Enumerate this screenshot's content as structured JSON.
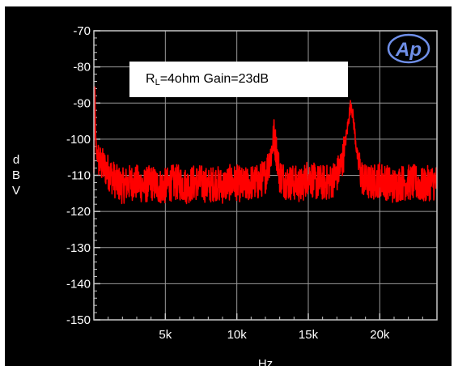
{
  "chart_data": {
    "type": "line",
    "title": "",
    "annotation": {
      "prefix": "R",
      "subscript": "L",
      "text": "=4ohm Gain=23dB"
    },
    "xlabel": "Hz",
    "ylabel": [
      "d",
      "B",
      "V"
    ],
    "xlim": [
      0,
      24000
    ],
    "ylim": [
      -150,
      -70
    ],
    "x_ticks": [
      5000,
      10000,
      15000,
      20000
    ],
    "x_tick_labels": [
      "5k",
      "10k",
      "15k",
      "20k"
    ],
    "y_ticks": [
      -150,
      -140,
      -130,
      -120,
      -110,
      -100,
      -90,
      -80,
      -70
    ],
    "y_tick_labels": [
      "-150",
      "-140",
      "-130",
      "-120",
      "-110",
      "-100",
      "-90",
      "-80",
      "-70"
    ],
    "grid": true,
    "logo": "Ap",
    "series": [
      {
        "color": "#ff0000",
        "x": [
          0,
          60,
          120,
          200,
          350,
          500,
          800,
          1200,
          1600,
          2000,
          2500,
          3000,
          3500,
          4000,
          4500,
          5000,
          5500,
          6000,
          6500,
          7000,
          7500,
          8000,
          8500,
          9000,
          9500,
          10000,
          10500,
          11000,
          11500,
          12000,
          12400,
          12600,
          12800,
          13000,
          13500,
          14000,
          14500,
          15000,
          15500,
          16000,
          16500,
          17000,
          17400,
          17700,
          17900,
          18000,
          18200,
          18400,
          18700,
          19000,
          19500,
          20000,
          20500,
          21000,
          21500,
          22000,
          22500,
          23000,
          23500,
          24000
        ],
        "y": [
          -110,
          -84,
          -100,
          -104,
          -106,
          -107,
          -108,
          -110,
          -112,
          -113,
          -112,
          -112,
          -113,
          -112,
          -113,
          -113,
          -112,
          -112,
          -113,
          -112,
          -112,
          -113,
          -112,
          -113,
          -112,
          -112,
          -113,
          -112,
          -112,
          -110,
          -104,
          -99,
          -104,
          -110,
          -112,
          -112,
          -113,
          -110,
          -112,
          -112,
          -112,
          -110,
          -106,
          -98,
          -92,
          -90,
          -96,
          -104,
          -110,
          -112,
          -112,
          -111,
          -112,
          -113,
          -112,
          -112,
          -112,
          -113,
          -112,
          -112
        ],
        "noise_amplitude_db": 5
      }
    ]
  }
}
